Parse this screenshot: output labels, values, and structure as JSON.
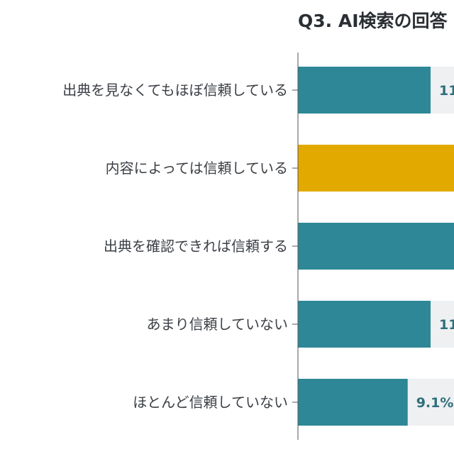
{
  "chart_data": {
    "type": "bar",
    "orientation": "horizontal",
    "title": "Q3. AI検索の回答",
    "categories": [
      "出典を見なくてもほぼ信頼している",
      "内容によっては信頼している",
      "出典を確認できれば信頼する",
      "あまり信頼していない",
      "ほとんど信頼していない"
    ],
    "values": [
      11,
      40,
      33,
      11,
      9.1
    ],
    "value_labels": [
      "11",
      "",
      "",
      "11",
      "9.1%"
    ],
    "units": "%",
    "colors": {
      "bar": "#2d8796",
      "highlight": "#e2aa00",
      "track": "#eef0f2",
      "value_text": "#2e6f7a"
    },
    "highlight_index": 1,
    "grid": false,
    "legend": "none"
  }
}
